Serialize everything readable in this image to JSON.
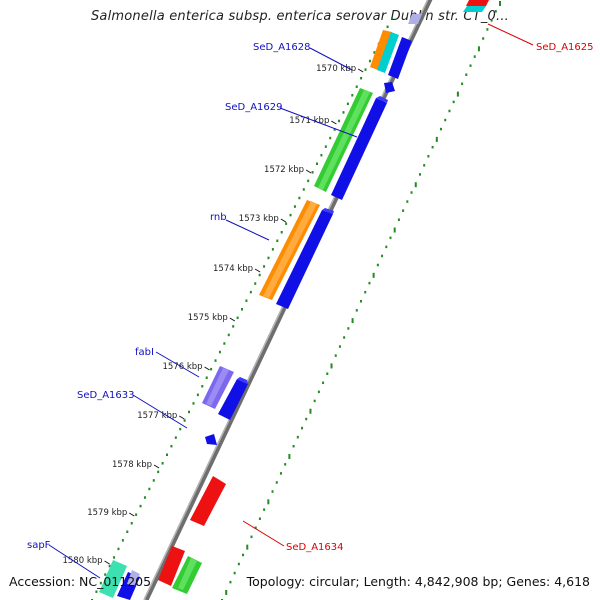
{
  "title": "Salmonella enterica subsp. enterica serovar Dublin str. CT_0...",
  "footer": {
    "accession": "Accession: NC_011205",
    "stats": "Topology: circular; Length: 4,842,908 bp; Genes: 4,618"
  },
  "ticks": [
    "1570 kbp",
    "1571 kbp",
    "1572 kbp",
    "1573 kbp",
    "1574 kbp",
    "1575 kbp",
    "1576 kbp",
    "1577 kbp",
    "1578 kbp",
    "1579 kbp",
    "1580 kbp"
  ],
  "gene_labels": [
    "SeD_A1628",
    "SeD_A1629",
    "rnb",
    "fabI",
    "SeD_A1633",
    "sapF",
    "SeD_A1625",
    "SeD_A1634"
  ],
  "colors": {
    "backbone": "#8c8c8c",
    "cds": "#1010e6",
    "orange": "#ff8c00",
    "green": "#33cc33",
    "purple": "#7b68ee",
    "red": "#ee1111",
    "cyan": "#00ced1",
    "label_blue": "#1010c0",
    "label_red": "#dd0000",
    "dots": "#228b22"
  }
}
